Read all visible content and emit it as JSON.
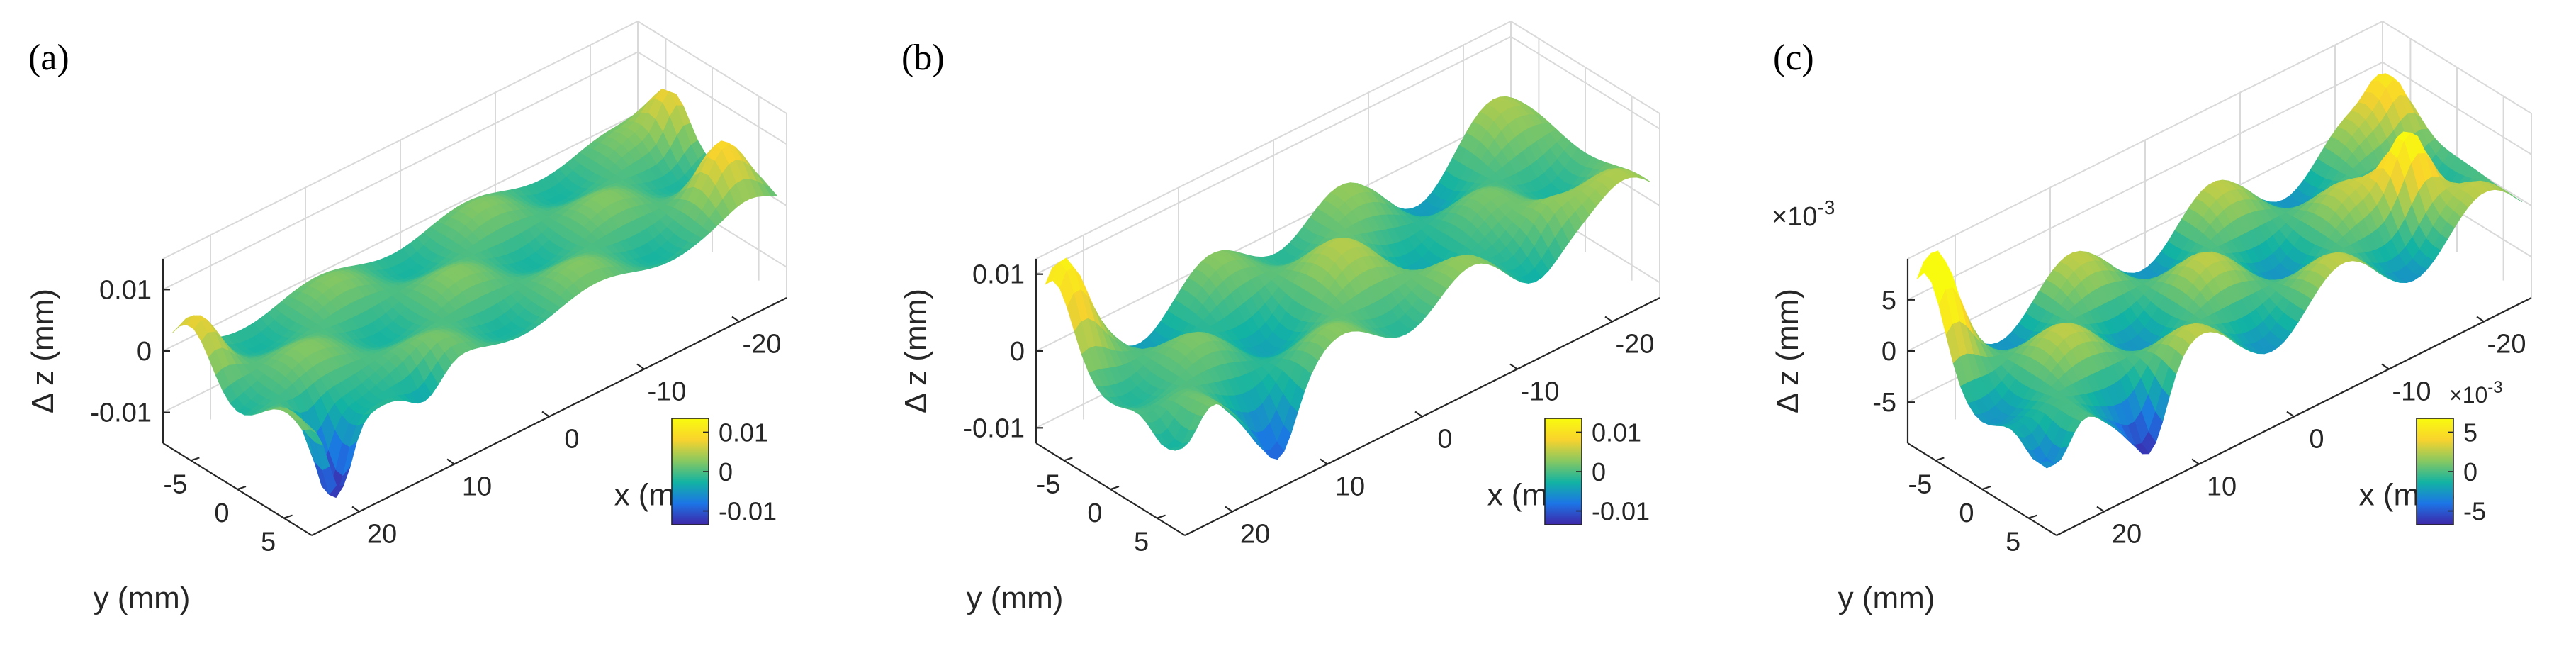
{
  "figure": {
    "panels": [
      "(a)",
      "(b)",
      "(c)"
    ]
  },
  "chart_data": [
    {
      "type": "surface",
      "panel_label": "(a)",
      "xlabel": "x (mm)",
      "ylabel": "y (mm)",
      "zlabel": "Δ z (mm)",
      "x_ticks": [
        "20",
        "10",
        "0",
        "-10",
        "-20"
      ],
      "x_tick_values": [
        20,
        10,
        0,
        -10,
        -20
      ],
      "y_ticks": [
        "-5",
        "0",
        "5"
      ],
      "y_tick_values": [
        -5,
        0,
        5
      ],
      "z_ticks": [
        "0.01",
        "0",
        "-0.01"
      ],
      "z_tick_values": [
        0.01,
        0,
        -0.01
      ],
      "xlim": [
        -25,
        25
      ],
      "ylim": [
        -8,
        8
      ],
      "zlim": [
        -0.015,
        0.015
      ],
      "colorbar": {
        "ticks": [
          "0.01",
          "0",
          "-0.01"
        ],
        "values": [
          0.01,
          0,
          -0.01
        ]
      },
      "z_exponent": "",
      "colormap": [
        "#3e26a8",
        "#1c75e6",
        "#12b3a3",
        "#88c861",
        "#f9d32d",
        "#f9fb0e"
      ],
      "grid": true
    },
    {
      "type": "surface",
      "panel_label": "(b)",
      "xlabel": "x (mm)",
      "ylabel": "y (mm)",
      "zlabel": "Δ z (mm)",
      "x_ticks": [
        "20",
        "10",
        "0",
        "-10",
        "-20"
      ],
      "x_tick_values": [
        20,
        10,
        0,
        -10,
        -20
      ],
      "y_ticks": [
        "-5",
        "0",
        "5"
      ],
      "y_tick_values": [
        -5,
        0,
        5
      ],
      "z_ticks": [
        "0.01",
        "0",
        "-0.01"
      ],
      "z_tick_values": [
        0.01,
        0,
        -0.01
      ],
      "xlim": [
        -25,
        25
      ],
      "ylim": [
        -8,
        8
      ],
      "zlim": [
        -0.012,
        0.012
      ],
      "colorbar": {
        "ticks": [
          "0.01",
          "0",
          "-0.01"
        ],
        "values": [
          0.01,
          0,
          -0.01
        ]
      },
      "z_exponent": "",
      "colormap": [
        "#3e26a8",
        "#1c75e6",
        "#12b3a3",
        "#88c861",
        "#f9d32d",
        "#f9fb0e"
      ],
      "grid": true
    },
    {
      "type": "surface",
      "panel_label": "(c)",
      "xlabel": "x (mm)",
      "ylabel": "y (mm)",
      "zlabel": "Δ z (mm)",
      "x_ticks": [
        "20",
        "10",
        "0",
        "-10",
        "-20"
      ],
      "x_tick_values": [
        20,
        10,
        0,
        -10,
        -20
      ],
      "y_ticks": [
        "-5",
        "0",
        "5"
      ],
      "y_tick_values": [
        -5,
        0,
        5
      ],
      "z_ticks": [
        "5",
        "0",
        "-5"
      ],
      "z_tick_values": [
        5,
        0,
        -5
      ],
      "xlim": [
        -25,
        25
      ],
      "ylim": [
        -8,
        8
      ],
      "zlim": [
        -9,
        9
      ],
      "colorbar": {
        "ticks": [
          "5",
          "0",
          "-5"
        ],
        "values": [
          5,
          0,
          -5
        ]
      },
      "z_exponent": "×10",
      "z_exponent_power": "-3",
      "colormap": [
        "#3e26a8",
        "#1c75e6",
        "#12b3a3",
        "#88c861",
        "#f9d32d",
        "#f9fb0e"
      ],
      "grid": true
    }
  ]
}
